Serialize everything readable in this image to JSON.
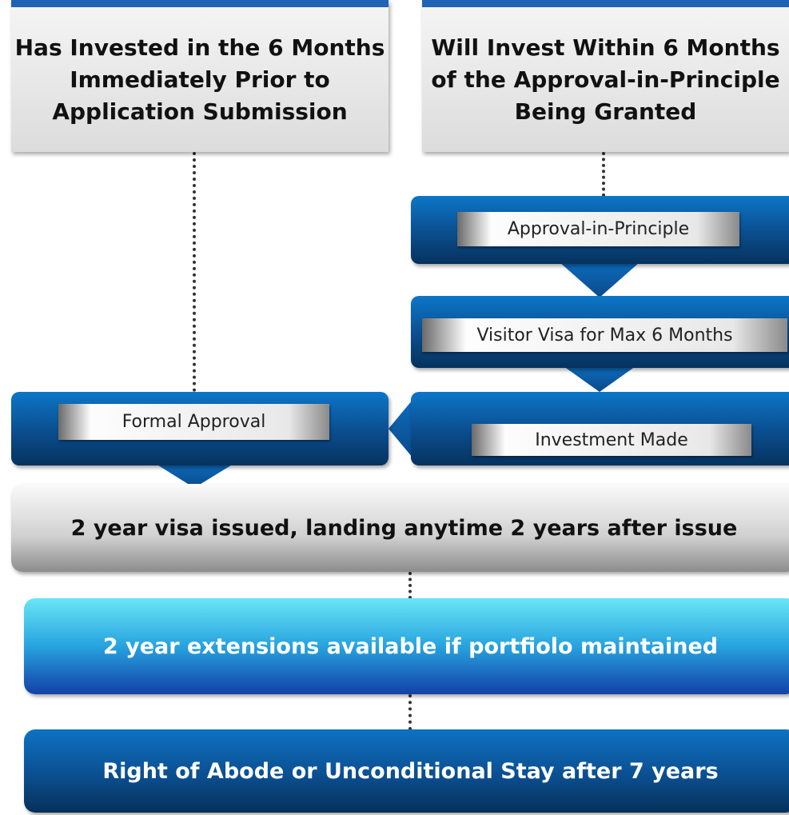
{
  "nodes": [
    {
      "id": "invested",
      "lines": [
        "Has Invested in the 6 Months",
        "Immediately Prior to",
        "Application Submission"
      ]
    },
    {
      "id": "will-invest",
      "lines": [
        "Will Invest Within 6 Months",
        "of the Approval-in-Principle",
        "Being Granted"
      ]
    },
    {
      "id": "aip",
      "label": "Approval-in-Principle"
    },
    {
      "id": "visitor",
      "label": "Visitor Visa for Max 6 Months"
    },
    {
      "id": "investment",
      "label": "Investment Made"
    },
    {
      "id": "formal",
      "label": "Formal Approval"
    },
    {
      "id": "visa",
      "label": "2 year visa issued, landing anytime 2 years after issue"
    },
    {
      "id": "extensions",
      "label": "2 year extensions available if portfiolo maintained"
    },
    {
      "id": "abode",
      "label": "Right of Abode or Unconditional Stay after 7 years"
    }
  ]
}
